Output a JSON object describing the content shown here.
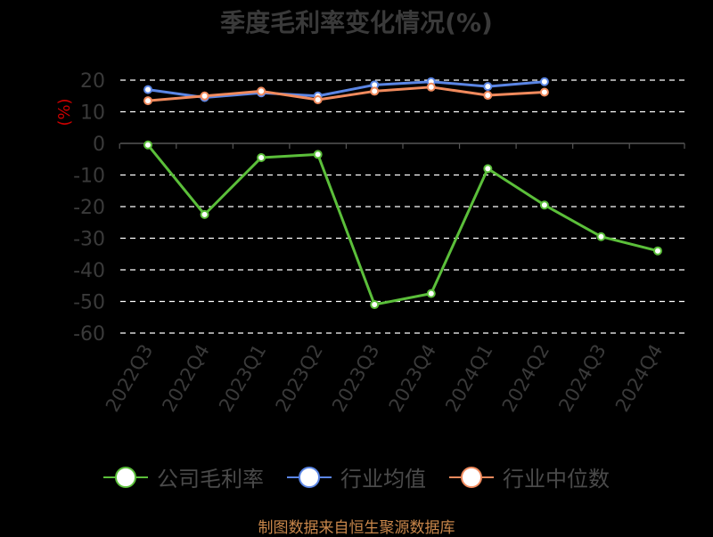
{
  "chart_data": {
    "type": "line",
    "title": "季度毛利率变化情况(%)",
    "ylabel": "(%)",
    "ylim": [
      -60,
      20
    ],
    "yticks": [
      20,
      10,
      0,
      -10,
      -20,
      -30,
      -40,
      -50,
      -60
    ],
    "categories": [
      "2022Q3",
      "2022Q4",
      "2023Q1",
      "2023Q2",
      "2023Q3",
      "2023Q4",
      "2024Q1",
      "2024Q2",
      "2024Q3",
      "2024Q4"
    ],
    "series": [
      {
        "name": "公司毛利率",
        "color": "#5bbf3a",
        "values": [
          -0.5,
          -22.5,
          -4.5,
          -3.5,
          -51,
          -47.5,
          -8,
          -19.5,
          -29.5,
          -34
        ]
      },
      {
        "name": "行业均值",
        "color": "#5b86e5",
        "values": [
          17,
          14.5,
          16,
          15,
          18.5,
          19.5,
          18,
          19.5,
          null,
          null
        ]
      },
      {
        "name": "行业中位数",
        "color": "#f08a5d",
        "values": [
          13.5,
          15,
          16.5,
          13.8,
          16.5,
          17.8,
          15.2,
          16.2,
          null,
          null
        ]
      }
    ],
    "grid": true,
    "legend_position": "bottom"
  },
  "source_note": "制图数据来自恒生聚源数据库",
  "colors": {
    "background": "#000000",
    "grid": "#ffffff",
    "axis_text": "#3a3a3a",
    "ylabel": "#cc0000",
    "source": "#c8864a"
  }
}
